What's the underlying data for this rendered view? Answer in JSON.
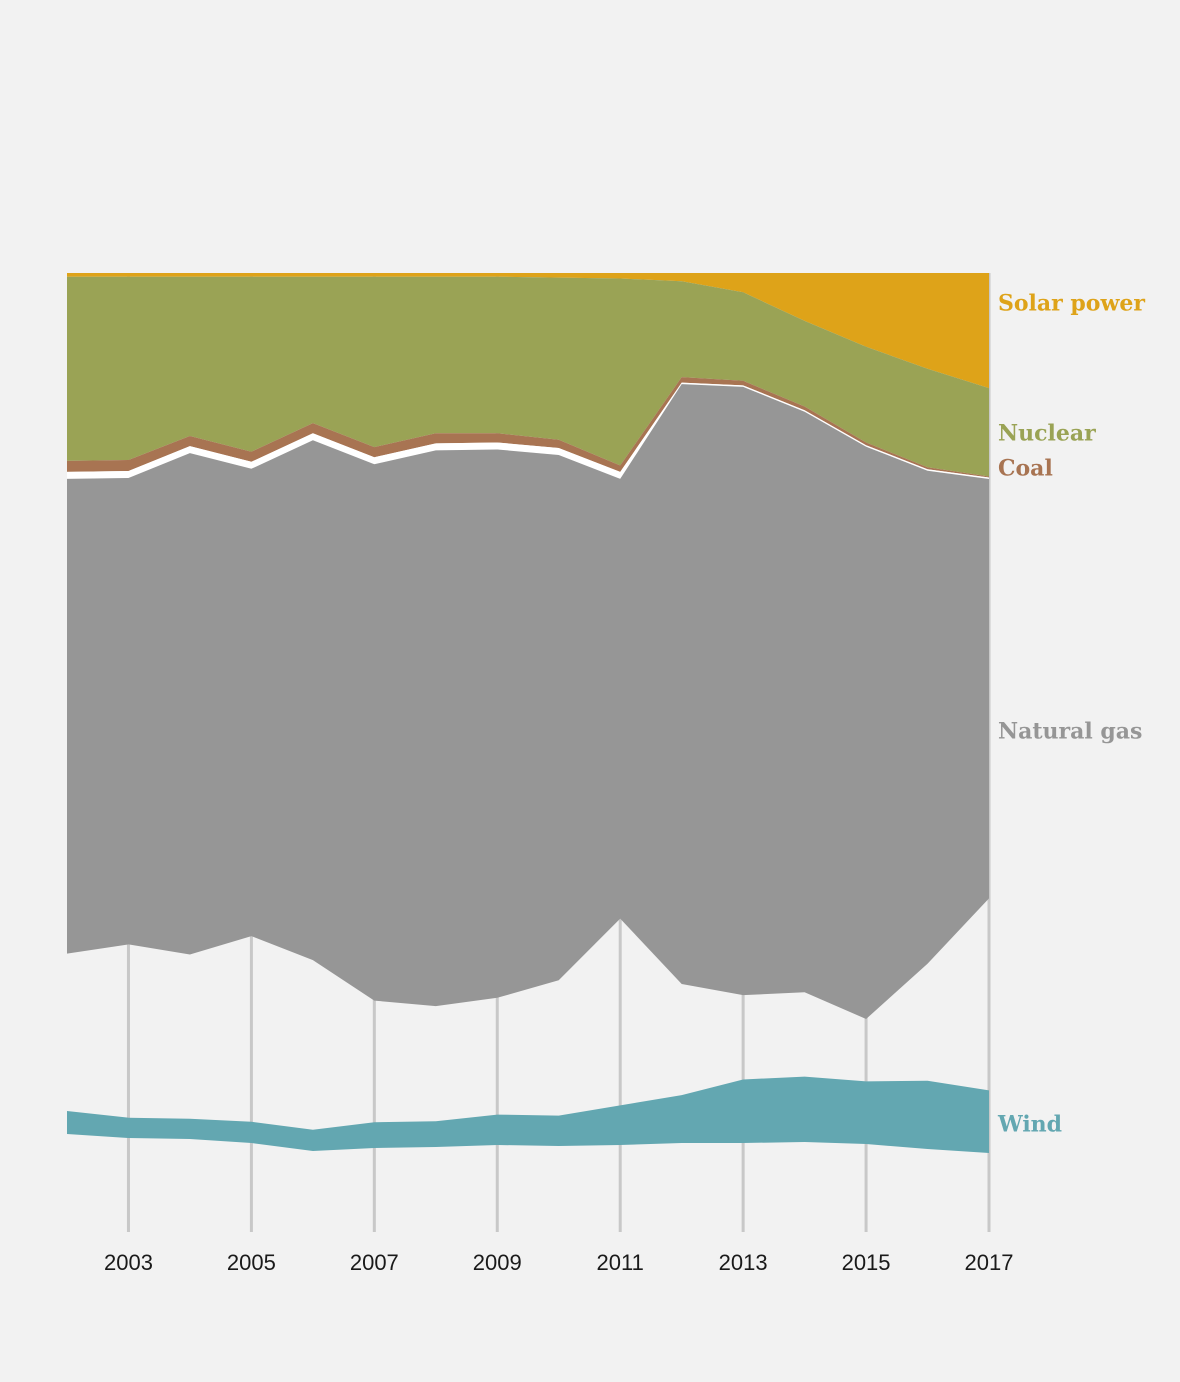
{
  "chart_data": {
    "type": "area",
    "x": [
      2002,
      2003,
      2004,
      2005,
      2006,
      2007,
      2008,
      2009,
      2010,
      2011,
      2012,
      2013,
      2014,
      2015,
      2016,
      2017
    ],
    "x_tick_labels": [
      "2003",
      "2005",
      "2007",
      "2009",
      "2011",
      "2013",
      "2015",
      "2017"
    ],
    "title": "",
    "xlabel": "",
    "ylabel": "",
    "grid": "vertical",
    "legend": "right, inline series labels",
    "series": [
      {
        "name": "Natural gas",
        "color": "#969696",
        "values": [
          52.3,
          51.4,
          55.2,
          51.5,
          57.2,
          59.0,
          61.1,
          60.3,
          57.8,
          48.5,
          65.3,
          66.2,
          63.2,
          62.3,
          53.7,
          45.7
        ]
      },
      {
        "name": "Coal",
        "color": "#a87452",
        "values": [
          1.2,
          1.2,
          1.1,
          1.1,
          1.1,
          1.1,
          1.1,
          1.0,
          0.9,
          0.7,
          0.6,
          0.5,
          0.4,
          0.3,
          0.2,
          0.1
        ]
      },
      {
        "name": "Nuclear",
        "color": "#9aa355",
        "values": [
          20.0,
          19.9,
          17.3,
          19.0,
          15.9,
          18.5,
          17.0,
          17.0,
          17.6,
          20.3,
          10.4,
          9.6,
          9.3,
          10.4,
          10.7,
          9.6
        ]
      },
      {
        "name": "Solar power",
        "color": "#dea319",
        "values": [
          0.4,
          0.4,
          0.4,
          0.4,
          0.4,
          0.4,
          0.4,
          0.4,
          0.5,
          0.6,
          0.9,
          2.1,
          5.2,
          8.0,
          10.4,
          12.5
        ]
      },
      {
        "name": "Wind",
        "color": "#63a7b1",
        "values": [
          2.5,
          2.2,
          2.2,
          2.3,
          2.3,
          2.8,
          2.8,
          3.3,
          3.3,
          4.3,
          5.2,
          6.9,
          7.1,
          6.8,
          7.4,
          6.8
        ]
      }
    ]
  }
}
